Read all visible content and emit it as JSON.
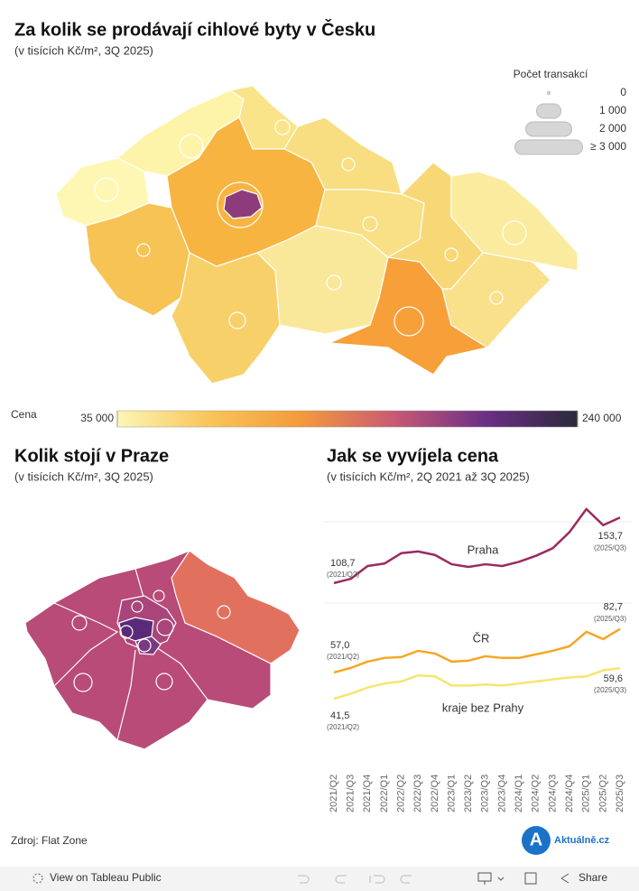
{
  "header": {
    "title": "Za kolik se prodávají cihlové byty v Česku",
    "subtitle": "(v tisících Kč/m², 3Q 2025)"
  },
  "map_legend": {
    "size_title": "Počet transakcí",
    "size_ticks": [
      0,
      {
        "value": 1000,
        "label": "1 000"
      },
      {
        "value": 2000,
        "label": "2 000"
      },
      {
        "value": 3000,
        "label": "≥ 3 000"
      }
    ],
    "color_title": "Cena",
    "color_ticks": [
      {
        "value": 35000,
        "label": "35 000"
      },
      {
        "value": 240000,
        "label": "240 000"
      }
    ],
    "color_scale": [
      "#fbf6b5",
      "#f9c45a",
      "#f39a3c",
      "#c95a72",
      "#6b2f86",
      "#2b2a3a"
    ]
  },
  "prague": {
    "title": "Kolik stojí v Praze",
    "subtitle": "(v tisících Kč/m², 3Q 2025)"
  },
  "chart_data": {
    "type": "line",
    "title": "Jak se vyvíjela cena",
    "subtitle": "(v tisících Kč/m², 2Q 2021 až 3Q 2025)",
    "categories": [
      "2021/Q2",
      "2021/Q3",
      "2021/Q4",
      "2022/Q1",
      "2022/Q2",
      "2022/Q3",
      "2022/Q4",
      "2023/Q1",
      "2023/Q2",
      "2023/Q3",
      "2023/Q4",
      "2024/Q1",
      "2024/Q2",
      "2024/Q3",
      "2024/Q4",
      "2025/Q1",
      "2025/Q2",
      "2025/Q3"
    ],
    "ylim": [
      33,
      98
    ],
    "y2lim": [
      95,
      165
    ],
    "point_notes": [
      "(2021/Q2)",
      "(2025/Q3)"
    ],
    "series": [
      {
        "name": "Praha",
        "color": "#9b2a5f",
        "axis": "y2",
        "values": [
          108.7,
          111.6,
          120.4,
          122.1,
          129.2,
          130.4,
          128.0,
          121.6,
          119.8,
          121.6,
          120.4,
          123.3,
          127.4,
          132.6,
          143.7,
          159.5,
          148.4,
          153.7
        ],
        "value_labels": [
          "108,7",
          null,
          null,
          null,
          null,
          null,
          null,
          null,
          null,
          null,
          null,
          null,
          null,
          null,
          null,
          null,
          null,
          "153,7"
        ]
      },
      {
        "name": "ČR",
        "color": "#f5a623",
        "values": [
          57.0,
          59.7,
          63.4,
          65.6,
          66.1,
          69.8,
          68.2,
          63.4,
          64.0,
          66.6,
          65.6,
          65.6,
          67.7,
          69.8,
          72.5,
          81.0,
          76.7,
          82.7
        ],
        "value_labels": [
          "57,0",
          null,
          null,
          null,
          null,
          null,
          null,
          null,
          null,
          null,
          null,
          null,
          null,
          null,
          null,
          null,
          null,
          "82,7"
        ]
      },
      {
        "name": "kraje bez Prahy",
        "color": "#f6e56e",
        "values": [
          41.5,
          44.5,
          48.1,
          50.5,
          51.7,
          55.3,
          54.7,
          49.3,
          49.3,
          49.9,
          49.3,
          50.5,
          51.7,
          52.9,
          54.1,
          54.7,
          58.3,
          59.6
        ],
        "value_labels": [
          "41,5",
          null,
          null,
          null,
          null,
          null,
          null,
          null,
          null,
          null,
          null,
          null,
          null,
          null,
          null,
          null,
          null,
          "59,6"
        ]
      }
    ]
  },
  "footer": {
    "source": "Zdroj: Flat Zone",
    "logo_letter": "A",
    "logo": "Aktuálně.cz"
  },
  "toolbar": {
    "view": "View on Tableau Public",
    "share": "Share"
  }
}
